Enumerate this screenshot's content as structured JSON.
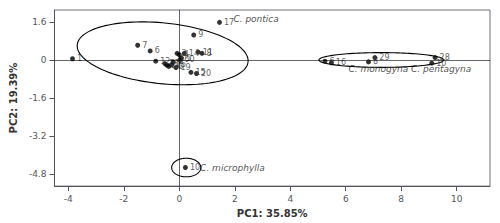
{
  "chart_data": {
    "type": "scatter",
    "xlabel": "PC1: 35.85%",
    "ylabel": "PC2: 19.39%",
    "marker": "circle",
    "series": [
      {
        "color": "black",
        "x": [
          -3.85,
          -1.5,
          -1.05,
          -0.85,
          -0.52,
          -0.45,
          -0.38,
          -0.28,
          -0.22,
          -0.12,
          -0.08,
          0.0,
          0.08,
          0.18,
          0.02,
          0.42,
          0.62,
          0.68,
          0.82,
          0.52,
          1.45
        ],
        "y": [
          0.05,
          0.62,
          0.38,
          -0.05,
          -0.15,
          -0.22,
          -0.27,
          -0.2,
          -0.08,
          -0.32,
          0.28,
          0.22,
          0.08,
          0.28,
          0.0,
          -0.52,
          -0.57,
          0.33,
          0.28,
          1.05,
          1.58
        ],
        "labels": [
          "1",
          "7",
          "6",
          "12",
          "21",
          "22",
          "23",
          "25",
          "2",
          "19",
          "3",
          "4",
          "5",
          "14",
          "60",
          "15",
          "20",
          "11",
          "8",
          "9",
          "17"
        ]
      },
      {
        "color": "black",
        "x": [
          5.25,
          5.48,
          7.05,
          6.82,
          9.22,
          9.1
        ],
        "y": [
          -0.05,
          -0.12,
          0.1,
          -0.08,
          0.1,
          -0.13
        ],
        "labels": [
          "6",
          "16",
          "29",
          "8",
          "28",
          "10"
        ]
      },
      {
        "color": "black",
        "x": [
          0.22
        ],
        "y": [
          -4.52
        ],
        "labels": [
          "10"
        ]
      }
    ],
    "ellipses": [
      {
        "cx": -0.6,
        "cy": 0.28,
        "width": 6.2,
        "height": 2.55,
        "angle": -7
      },
      {
        "cx": 7.28,
        "cy": 0.0,
        "width": 4.5,
        "height": 0.62,
        "angle": 0
      },
      {
        "cx": 0.25,
        "cy": -4.52,
        "width": 1.05,
        "height": 0.78,
        "angle": 0
      }
    ],
    "annotations": [
      {
        "x": 1.95,
        "y": 1.72,
        "text": "C. pontica"
      },
      {
        "x": 6.1,
        "y": -0.38,
        "text": "C. monogyna"
      },
      {
        "x": 8.35,
        "y": -0.38,
        "text": "C. pentagyna"
      },
      {
        "x": 0.75,
        "y": -4.52,
        "text": "C. microphylla"
      }
    ],
    "hlines": [
      0
    ],
    "vlines": [
      0
    ],
    "xlim": [
      -4.5,
      11.2
    ],
    "xticks": [
      -4,
      -2,
      0,
      2,
      4,
      6,
      8,
      10
    ],
    "ylim": [
      -5.3,
      2.1
    ],
    "yticks": [
      -4.8,
      -3.2,
      -1.6,
      0,
      1.6
    ],
    "grid": false
  }
}
